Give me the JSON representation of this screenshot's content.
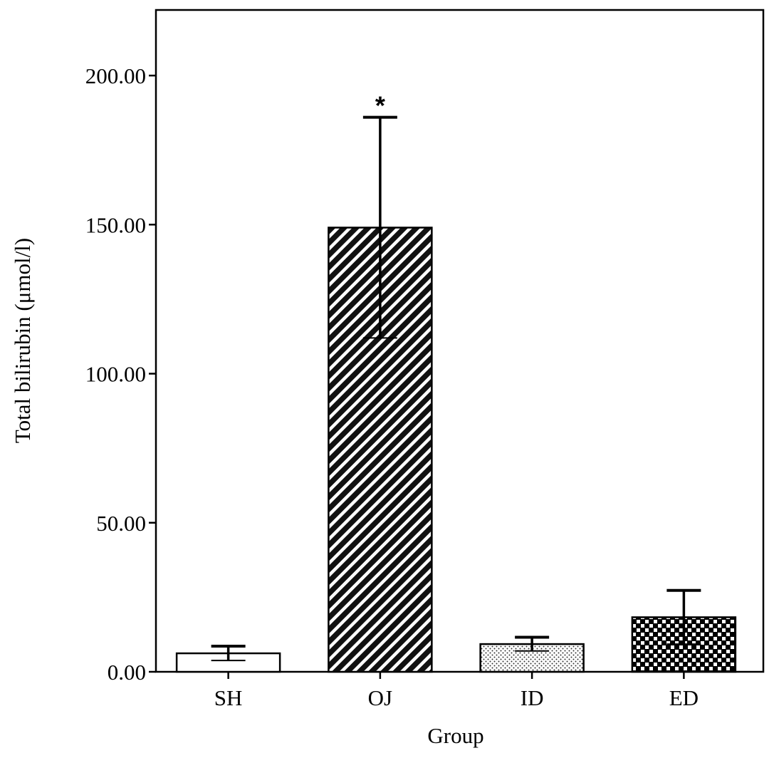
{
  "chart_data": {
    "type": "bar",
    "title": "",
    "xlabel": "Group",
    "ylabel": "Total bilirubin (μmol/l)",
    "categories": [
      "SH",
      "OJ",
      "ID",
      "ED"
    ],
    "values": [
      6.2,
      149.0,
      9.3,
      18.3
    ],
    "error_bars": [
      2.4,
      37.0,
      2.3,
      9.0
    ],
    "ylim": [
      0,
      222
    ],
    "yticks": [
      0,
      50,
      100,
      150,
      200
    ],
    "ytick_labels": [
      "0.00",
      "50.00",
      "100.00",
      "150.00",
      "200.00"
    ],
    "fill_patterns": [
      "none",
      "diagonal-stripes",
      "dots",
      "checkerboard"
    ],
    "annotations": [
      {
        "category": "OJ",
        "text": "*"
      }
    ],
    "grid": false,
    "legend": "none",
    "colors": {
      "bar_stroke": "#000000",
      "background": "#ffffff"
    }
  }
}
